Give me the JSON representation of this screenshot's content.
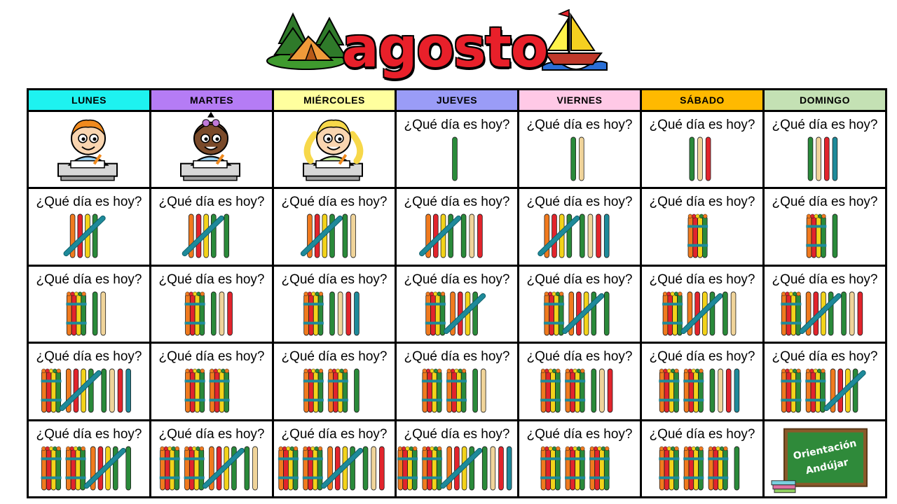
{
  "title": "agosto",
  "question": "¿Qué día es hoy?",
  "weekdays": [
    {
      "label": "LUNES",
      "color": "#1ef2f0"
    },
    {
      "label": "MARTES",
      "color": "#b57cf5"
    },
    {
      "label": "MIÉRCOLES",
      "color": "#ffff9e"
    },
    {
      "label": "JUEVES",
      "color": "#9a9cf7"
    },
    {
      "label": "VIERNES",
      "color": "#ffc9e6"
    },
    {
      "label": "SÁBADO",
      "color": "#ffb900"
    },
    {
      "label": "DOMINGO",
      "color": "#c4e1b4"
    }
  ],
  "first_weekday_index": 3,
  "days_in_month": 31,
  "logo": {
    "line1": "Orientación",
    "line2": "Andújar"
  },
  "stick_colors": [
    "#2a8a3a",
    "#f0d49a",
    "#e2242c",
    "#1e8a9a",
    "#8a3e98"
  ],
  "bundle_colors": [
    "#f07a1e",
    "#e2242c",
    "#f3d31a",
    "#2a8a3a"
  ],
  "cross_color": "#1e8a9a"
}
